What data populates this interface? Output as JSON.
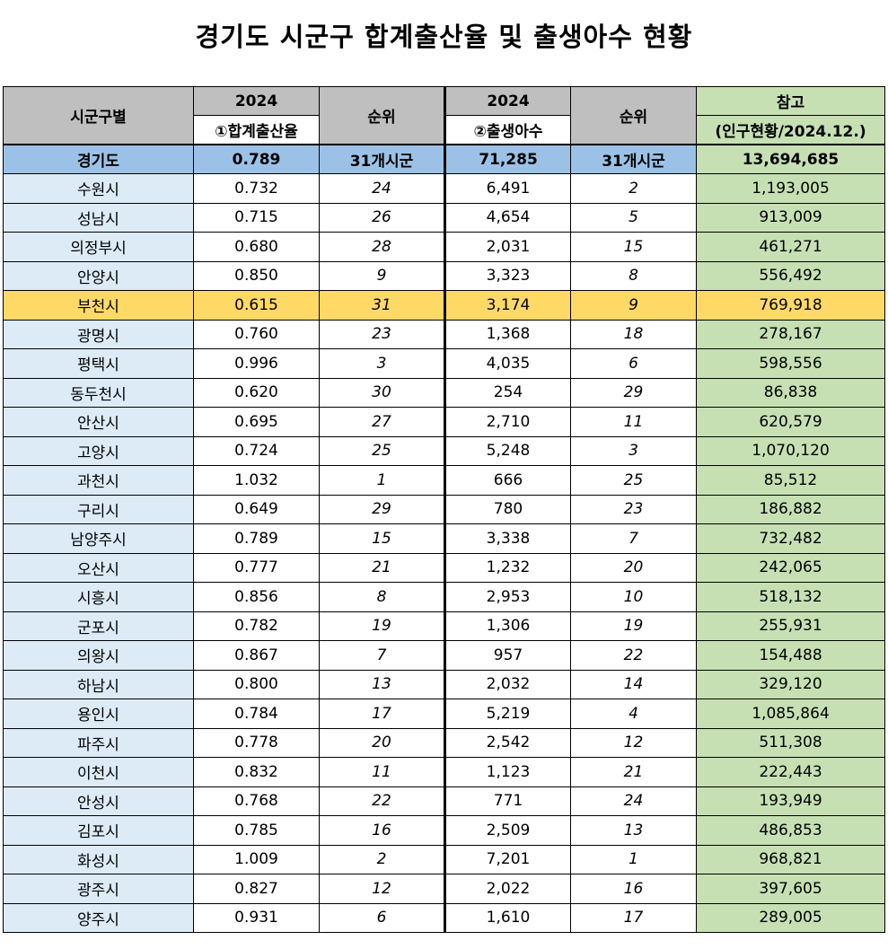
{
  "title": "경기도 시군구 합계출산율 및 출생아수 현황",
  "header": {
    "region_col": "시군구별",
    "year_tfr": "2024",
    "tfr_label": "①합계출산율",
    "rank1": "순위",
    "year_births": "2024",
    "births_label": "②출생아수",
    "rank2": "순위",
    "ref_label": "참고",
    "ref_sub": "(인구현황/2024.12.)"
  },
  "summary": {
    "name": "경기도",
    "tfr": "0.789",
    "rank1": "31개시군",
    "births": "71,285",
    "rank2": "31개시군",
    "population": "13,694,685"
  },
  "rows": [
    {
      "name": "수원시",
      "tfr": "0.732",
      "rank1": "24",
      "births": "6,491",
      "rank2": "2",
      "population": "1,193,005"
    },
    {
      "name": "성남시",
      "tfr": "0.715",
      "rank1": "26",
      "births": "4,654",
      "rank2": "5",
      "population": "913,009"
    },
    {
      "name": "의정부시",
      "tfr": "0.680",
      "rank1": "28",
      "births": "2,031",
      "rank2": "15",
      "population": "461,271"
    },
    {
      "name": "안양시",
      "tfr": "0.850",
      "rank1": "9",
      "births": "3,323",
      "rank2": "8",
      "population": "556,492"
    },
    {
      "name": "부천시",
      "tfr": "0.615",
      "rank1": "31",
      "births": "3,174",
      "rank2": "9",
      "population": "769,918",
      "highlight": true
    },
    {
      "name": "광명시",
      "tfr": "0.760",
      "rank1": "23",
      "births": "1,368",
      "rank2": "18",
      "population": "278,167"
    },
    {
      "name": "평택시",
      "tfr": "0.996",
      "rank1": "3",
      "births": "4,035",
      "rank2": "6",
      "population": "598,556"
    },
    {
      "name": "동두천시",
      "tfr": "0.620",
      "rank1": "30",
      "births": "254",
      "rank2": "29",
      "population": "86,838"
    },
    {
      "name": "안산시",
      "tfr": "0.695",
      "rank1": "27",
      "births": "2,710",
      "rank2": "11",
      "population": "620,579"
    },
    {
      "name": "고양시",
      "tfr": "0.724",
      "rank1": "25",
      "births": "5,248",
      "rank2": "3",
      "population": "1,070,120"
    },
    {
      "name": "과천시",
      "tfr": "1.032",
      "rank1": "1",
      "births": "666",
      "rank2": "25",
      "population": "85,512"
    },
    {
      "name": "구리시",
      "tfr": "0.649",
      "rank1": "29",
      "births": "780",
      "rank2": "23",
      "population": "186,882"
    },
    {
      "name": "남양주시",
      "tfr": "0.789",
      "rank1": "15",
      "births": "3,338",
      "rank2": "7",
      "population": "732,482"
    },
    {
      "name": "오산시",
      "tfr": "0.777",
      "rank1": "21",
      "births": "1,232",
      "rank2": "20",
      "population": "242,065"
    },
    {
      "name": "시흥시",
      "tfr": "0.856",
      "rank1": "8",
      "births": "2,953",
      "rank2": "10",
      "population": "518,132"
    },
    {
      "name": "군포시",
      "tfr": "0.782",
      "rank1": "19",
      "births": "1,306",
      "rank2": "19",
      "population": "255,931"
    },
    {
      "name": "의왕시",
      "tfr": "0.867",
      "rank1": "7",
      "births": "957",
      "rank2": "22",
      "population": "154,488"
    },
    {
      "name": "하남시",
      "tfr": "0.800",
      "rank1": "13",
      "births": "2,032",
      "rank2": "14",
      "population": "329,120"
    },
    {
      "name": "용인시",
      "tfr": "0.784",
      "rank1": "17",
      "births": "5,219",
      "rank2": "4",
      "population": "1,085,864"
    },
    {
      "name": "파주시",
      "tfr": "0.778",
      "rank1": "20",
      "births": "2,542",
      "rank2": "12",
      "population": "511,308"
    },
    {
      "name": "이천시",
      "tfr": "0.832",
      "rank1": "11",
      "births": "1,123",
      "rank2": "21",
      "population": "222,443"
    },
    {
      "name": "안성시",
      "tfr": "0.768",
      "rank1": "22",
      "births": "771",
      "rank2": "24",
      "population": "193,949"
    },
    {
      "name": "김포시",
      "tfr": "0.785",
      "rank1": "16",
      "births": "2,509",
      "rank2": "13",
      "population": "486,853"
    },
    {
      "name": "화성시",
      "tfr": "1.009",
      "rank1": "2",
      "births": "7,201",
      "rank2": "1",
      "population": "968,821"
    },
    {
      "name": "광주시",
      "tfr": "0.827",
      "rank1": "12",
      "births": "2,022",
      "rank2": "16",
      "population": "397,605"
    },
    {
      "name": "양주시",
      "tfr": "0.931",
      "rank1": "6",
      "births": "1,610",
      "rank2": "17",
      "population": "289,005"
    }
  ]
}
